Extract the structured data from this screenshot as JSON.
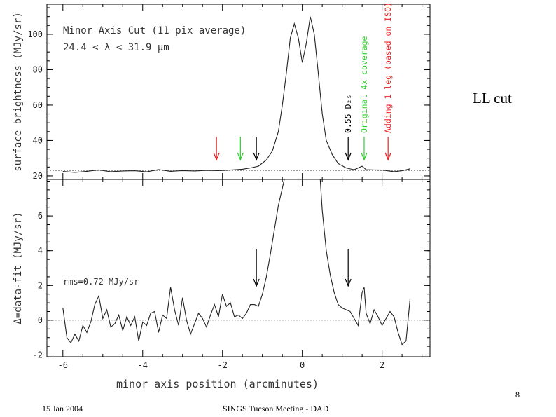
{
  "slide": {
    "title": "LL cut",
    "page_number": "8",
    "footer_date": "15 Jan 2004",
    "footer_meeting": "SINGS Tucson Meeting - DAD"
  },
  "colors": {
    "black": "#000000",
    "green": "#33cc33",
    "red": "#ee2222",
    "baseline": "#888888"
  },
  "chart_data": [
    {
      "type": "line",
      "title": "Minor Axis Cut (11 pix average)",
      "subtitle": "24.4 < λ < 31.9 μm",
      "xlabel": "",
      "ylabel": "surface brightness (MJy/sr)",
      "xlim": [
        -6.4,
        3.2
      ],
      "ylim": [
        18,
        117
      ],
      "yticks": [
        "20",
        "40",
        "60",
        "80",
        "100"
      ],
      "baseline": 23,
      "series": [
        {
          "x": [
            -6,
            -5.7,
            -5.4,
            -5.1,
            -4.8,
            -4.5,
            -4.2,
            -3.9,
            -3.6,
            -3.3,
            -3.0,
            -2.7,
            -2.4,
            -2.1,
            -1.8,
            -1.5,
            -1.3,
            -1.1,
            -0.9,
            -0.75,
            -0.6,
            -0.5,
            -0.4,
            -0.3,
            -0.2,
            -0.1,
            0,
            0.1,
            0.2,
            0.3,
            0.4,
            0.5,
            0.6,
            0.75,
            0.9,
            1.1,
            1.3,
            1.5,
            1.6,
            1.8,
            2.0,
            2.3,
            2.5,
            2.7
          ],
          "values": [
            22.5,
            22.0,
            22.6,
            23.4,
            22.4,
            22.8,
            22.9,
            22.3,
            23.6,
            22.6,
            23.0,
            22.8,
            23.1,
            23.0,
            23.3,
            23.8,
            24.5,
            25.5,
            29,
            34,
            45,
            60,
            78,
            98,
            106,
            98,
            84,
            95,
            110,
            100,
            78,
            55,
            40,
            32,
            27,
            24.5,
            23.5,
            25.5,
            23.5,
            23.4,
            23.3,
            22.4,
            22.9,
            24
          ]
        }
      ],
      "annotations": [
        {
          "text": "0.55 D₂₅",
          "x": 1.15,
          "color": "black"
        },
        {
          "text": "Original 4x coverage",
          "x": 1.55,
          "color": "green"
        },
        {
          "text": "Adding 1 leg (based on ISO)",
          "x": 2.15,
          "color": "red"
        }
      ],
      "arrows": [
        {
          "x": -2.15,
          "color": "red"
        },
        {
          "x": -1.55,
          "color": "green"
        },
        {
          "x": -1.15,
          "color": "black"
        },
        {
          "x": 1.15,
          "color": "black"
        },
        {
          "x": 1.55,
          "color": "green"
        },
        {
          "x": 2.15,
          "color": "red"
        }
      ]
    },
    {
      "type": "line",
      "title": "",
      "xlabel": "minor axis position (arcminutes)",
      "ylabel": "Δ=data-fit (MJy/sr)",
      "xlim": [
        -6.4,
        3.2
      ],
      "ylim": [
        -2.1,
        8.1
      ],
      "xticks": [
        "-6",
        "-4",
        "-2",
        "0",
        "2"
      ],
      "yticks": [
        "-2",
        "0",
        "2",
        "4",
        "6"
      ],
      "baseline": 0,
      "annotation": "rms=0.72 MJy/sr",
      "series": [
        {
          "x": [
            -6,
            -5.9,
            -5.8,
            -5.7,
            -5.6,
            -5.5,
            -5.4,
            -5.3,
            -5.2,
            -5.1,
            -5.0,
            -4.9,
            -4.8,
            -4.7,
            -4.6,
            -4.5,
            -4.4,
            -4.3,
            -4.2,
            -4.1,
            -4.0,
            -3.9,
            -3.8,
            -3.7,
            -3.6,
            -3.5,
            -3.4,
            -3.3,
            -3.2,
            -3.1,
            -3.0,
            -2.9,
            -2.8,
            -2.7,
            -2.6,
            -2.5,
            -2.4,
            -2.3,
            -2.2,
            -2.1,
            -2.0,
            -1.9,
            -1.8,
            -1.7,
            -1.6,
            -1.5,
            -1.4,
            -1.3,
            -1.2,
            -1.1,
            -1.0,
            -0.9,
            -0.8,
            -0.7,
            -0.6,
            -0.5,
            -0.45,
            0.45,
            0.5,
            0.6,
            0.7,
            0.8,
            0.9,
            1.0,
            1.1,
            1.2,
            1.3,
            1.4,
            1.5,
            1.55,
            1.6,
            1.7,
            1.8,
            1.9,
            2.0,
            2.1,
            2.2,
            2.3,
            2.4,
            2.5,
            2.6,
            2.7
          ],
          "values": [
            0.7,
            -1.0,
            -1.3,
            -0.8,
            -1.2,
            -0.3,
            -0.7,
            -0.1,
            0.9,
            1.4,
            0.1,
            0.6,
            -0.4,
            -0.2,
            0.3,
            -0.6,
            0.2,
            -0.3,
            0.2,
            -1.2,
            -0.1,
            -0.3,
            0.4,
            0.5,
            -0.7,
            0.3,
            0.1,
            1.9,
            0.6,
            -0.3,
            1.3,
            0.0,
            -0.8,
            -0.2,
            0.4,
            0.1,
            -0.4,
            0.3,
            0.9,
            0.2,
            1.5,
            0.8,
            1.0,
            0.2,
            0.3,
            0.1,
            0.4,
            0.9,
            0.9,
            0.8,
            1.5,
            2.5,
            3.8,
            5.2,
            6.6,
            7.6,
            8.1,
            8.1,
            6.3,
            4.0,
            2.6,
            1.6,
            0.9,
            0.7,
            0.6,
            0.5,
            0.1,
            -0.3,
            1.6,
            1.9,
            0.4,
            -0.2,
            0.6,
            0.2,
            -0.3,
            0.1,
            0.5,
            0.2,
            -0.7,
            -1.4,
            -1.2,
            1.2
          ]
        }
      ],
      "arrows": [
        {
          "x": -1.15,
          "color": "black"
        },
        {
          "x": 1.15,
          "color": "black"
        }
      ]
    }
  ]
}
